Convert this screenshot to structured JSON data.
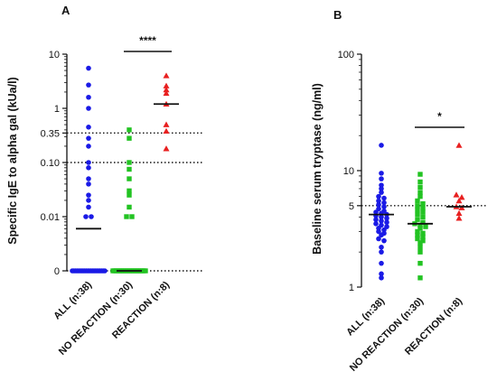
{
  "chart_data": [
    {
      "panel": "A",
      "type": "scatter",
      "ylabel": "Specific IgE to alpha gal (kUa/l)",
      "yscale": "log",
      "ylim": [
        0.001,
        10
      ],
      "yticks": [
        {
          "value": 10,
          "label": "10"
        },
        {
          "value": 1,
          "label": "1"
        },
        {
          "value": 0.35,
          "label": "0.35"
        },
        {
          "value": 0.1,
          "label": "0.10"
        },
        {
          "value": 0.01,
          "label": "0.01"
        },
        {
          "value": 0.001,
          "label": "0"
        }
      ],
      "reference_lines": [
        0.35,
        0.1,
        0.001
      ],
      "categories": [
        "ALL (n:38)",
        "NO REACTION (n:30)",
        "REACTION (n:8)"
      ],
      "series": [
        {
          "color": "#1a1ae6",
          "marker": "circle",
          "median": 0.006,
          "values": [
            5.5,
            2.7,
            1.6,
            1.0,
            0.45,
            0.28,
            0.2,
            0.1,
            0.08,
            0.05,
            0.04,
            0.025,
            0.02,
            0.015,
            0.01,
            0.01,
            0.001,
            0.001,
            0.001,
            0.001,
            0.001,
            0.001,
            0.001,
            0.001,
            0.001,
            0.001,
            0.001,
            0.001,
            0.001,
            0.001,
            0.001,
            0.001,
            0.001,
            0.001,
            0.001,
            0.001,
            0.001,
            0.001
          ]
        },
        {
          "color": "#22c322",
          "marker": "square",
          "median": 0.001,
          "values": [
            0.4,
            0.28,
            0.1,
            0.075,
            0.05,
            0.03,
            0.025,
            0.015,
            0.01,
            0.01,
            0.001,
            0.001,
            0.001,
            0.001,
            0.001,
            0.001,
            0.001,
            0.001,
            0.001,
            0.001,
            0.001,
            0.001,
            0.001,
            0.001,
            0.001,
            0.001,
            0.001,
            0.001,
            0.001,
            0.001
          ]
        },
        {
          "color": "#e82020",
          "marker": "triangle",
          "median": 1.2,
          "values": [
            4.0,
            2.6,
            2.2,
            1.9,
            1.2,
            0.5,
            0.38,
            0.18
          ]
        }
      ],
      "significance": {
        "from": 1,
        "to": 2,
        "label": "****"
      }
    },
    {
      "panel": "B",
      "type": "scatter",
      "ylabel": "Baseline serum tryptase  (ng/ml)",
      "yscale": "log",
      "ylim": [
        1,
        100
      ],
      "yticks": [
        {
          "value": 100,
          "label": "100"
        },
        {
          "value": 10,
          "label": "10"
        },
        {
          "value": 5,
          "label": "5"
        },
        {
          "value": 1,
          "label": "1"
        }
      ],
      "reference_lines": [
        5
      ],
      "categories": [
        "ALL (n:38)",
        "NO REACTION (n:30)",
        "REACTION (n:8)"
      ],
      "series": [
        {
          "color": "#1a1ae6",
          "marker": "circle",
          "median": 4.2,
          "values": [
            16.5,
            9.5,
            8.5,
            7.5,
            7.0,
            6.5,
            6.0,
            5.8,
            5.5,
            5.3,
            5.1,
            4.9,
            4.7,
            4.5,
            4.4,
            4.3,
            4.2,
            4.1,
            4.0,
            3.9,
            3.8,
            3.7,
            3.6,
            3.5,
            3.4,
            3.3,
            3.2,
            3.1,
            3.0,
            2.9,
            2.8,
            2.6,
            2.5,
            2.2,
            2.0,
            1.6,
            1.3,
            1.2
          ]
        },
        {
          "color": "#22c322",
          "marker": "square",
          "median": 3.5,
          "values": [
            9.3,
            8.0,
            7.2,
            6.5,
            6.0,
            5.5,
            5.2,
            5.0,
            4.8,
            4.6,
            4.4,
            4.2,
            4.0,
            3.8,
            3.6,
            3.5,
            3.4,
            3.3,
            3.2,
            3.0,
            2.9,
            2.8,
            2.7,
            2.6,
            2.5,
            2.4,
            2.2,
            2.0,
            1.6,
            1.2
          ]
        },
        {
          "color": "#e82020",
          "marker": "triangle",
          "median": 4.9,
          "values": [
            16.5,
            6.2,
            5.9,
            5.5,
            4.9,
            4.8,
            4.3,
            3.9
          ]
        }
      ],
      "significance": {
        "from": 1,
        "to": 2,
        "label": "*"
      }
    }
  ]
}
